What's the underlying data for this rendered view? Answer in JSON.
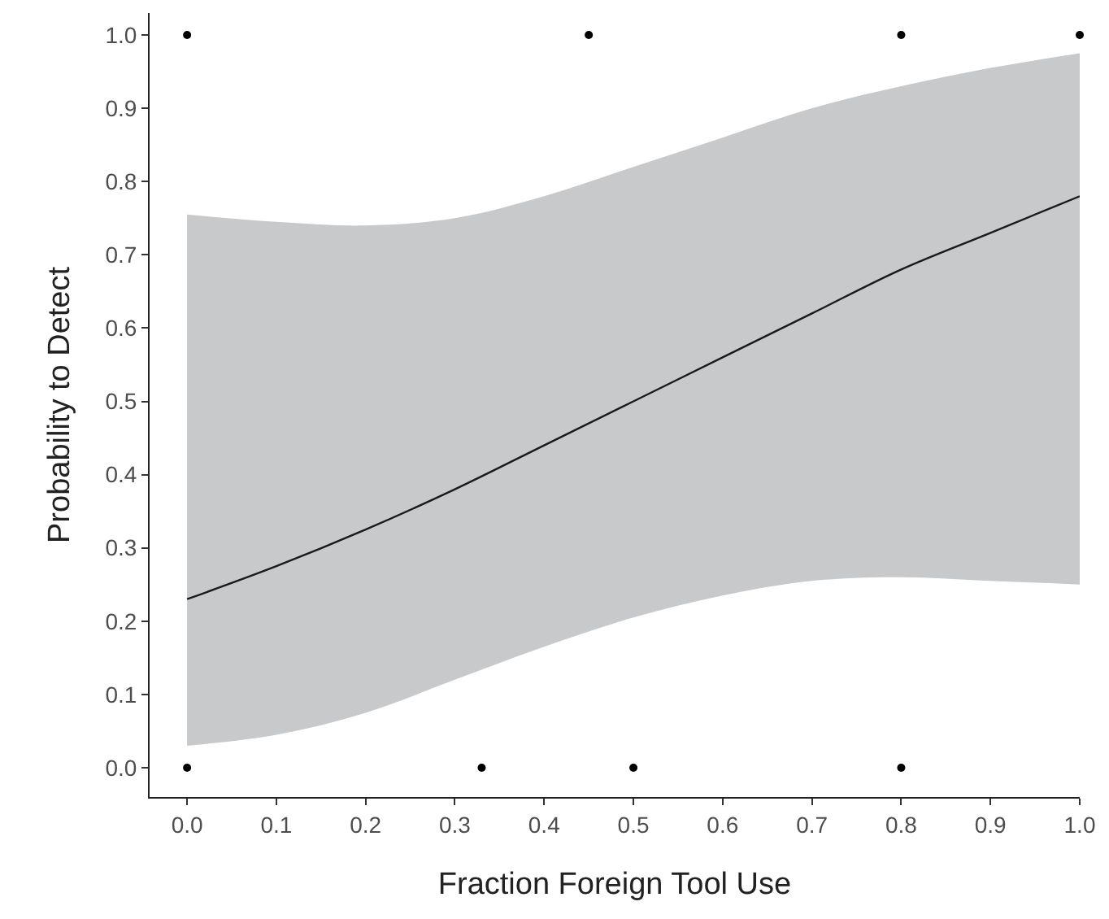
{
  "chart_data": {
    "type": "line",
    "xlabel": "Fraction Foreign Tool Use",
    "ylabel": "Probability to Detect",
    "xlim": [
      -0.042,
      1.0
    ],
    "ylim": [
      -0.04,
      1.03
    ],
    "xticks": [
      {
        "value": 0,
        "label": "0.0"
      },
      0.1,
      0.2,
      0.3,
      0.4,
      0.5,
      0.6,
      0.7,
      0.8,
      0.9,
      {
        "value": 1,
        "label": "1.0"
      }
    ],
    "yticks": [
      {
        "value": 0,
        "label": "0.0"
      },
      0.1,
      0.2,
      0.3,
      0.4,
      0.5,
      0.6,
      0.7,
      0.8,
      0.9,
      {
        "value": 1,
        "label": "1.0"
      }
    ],
    "grid": false,
    "series": [
      {
        "color": "#1a1a1a",
        "marker": "none",
        "line_style": "solid",
        "x": [
          0,
          0.1,
          0.2,
          0.3,
          0.4,
          0.5,
          0.6,
          0.7,
          0.8,
          0.9,
          1.0
        ],
        "values": [
          0.23,
          0.275,
          0.325,
          0.38,
          0.44,
          0.5,
          0.56,
          0.62,
          0.68,
          0.73,
          0.78
        ],
        "lower": [
          0.03,
          0.045,
          0.075,
          0.12,
          0.165,
          0.205,
          0.235,
          0.255,
          0.26,
          0.255,
          0.25
        ],
        "upper": [
          0.755,
          0.745,
          0.74,
          0.75,
          0.78,
          0.82,
          0.86,
          0.9,
          0.93,
          0.955,
          0.975
        ]
      },
      {
        "type": "scatter",
        "color": "#000000",
        "marker": "circle",
        "x": [
          0,
          0.45,
          0.8,
          1.0,
          0,
          0.33,
          0.5,
          0.8
        ],
        "values": [
          1,
          1,
          1,
          1,
          0,
          0,
          0,
          0
        ]
      }
    ]
  }
}
